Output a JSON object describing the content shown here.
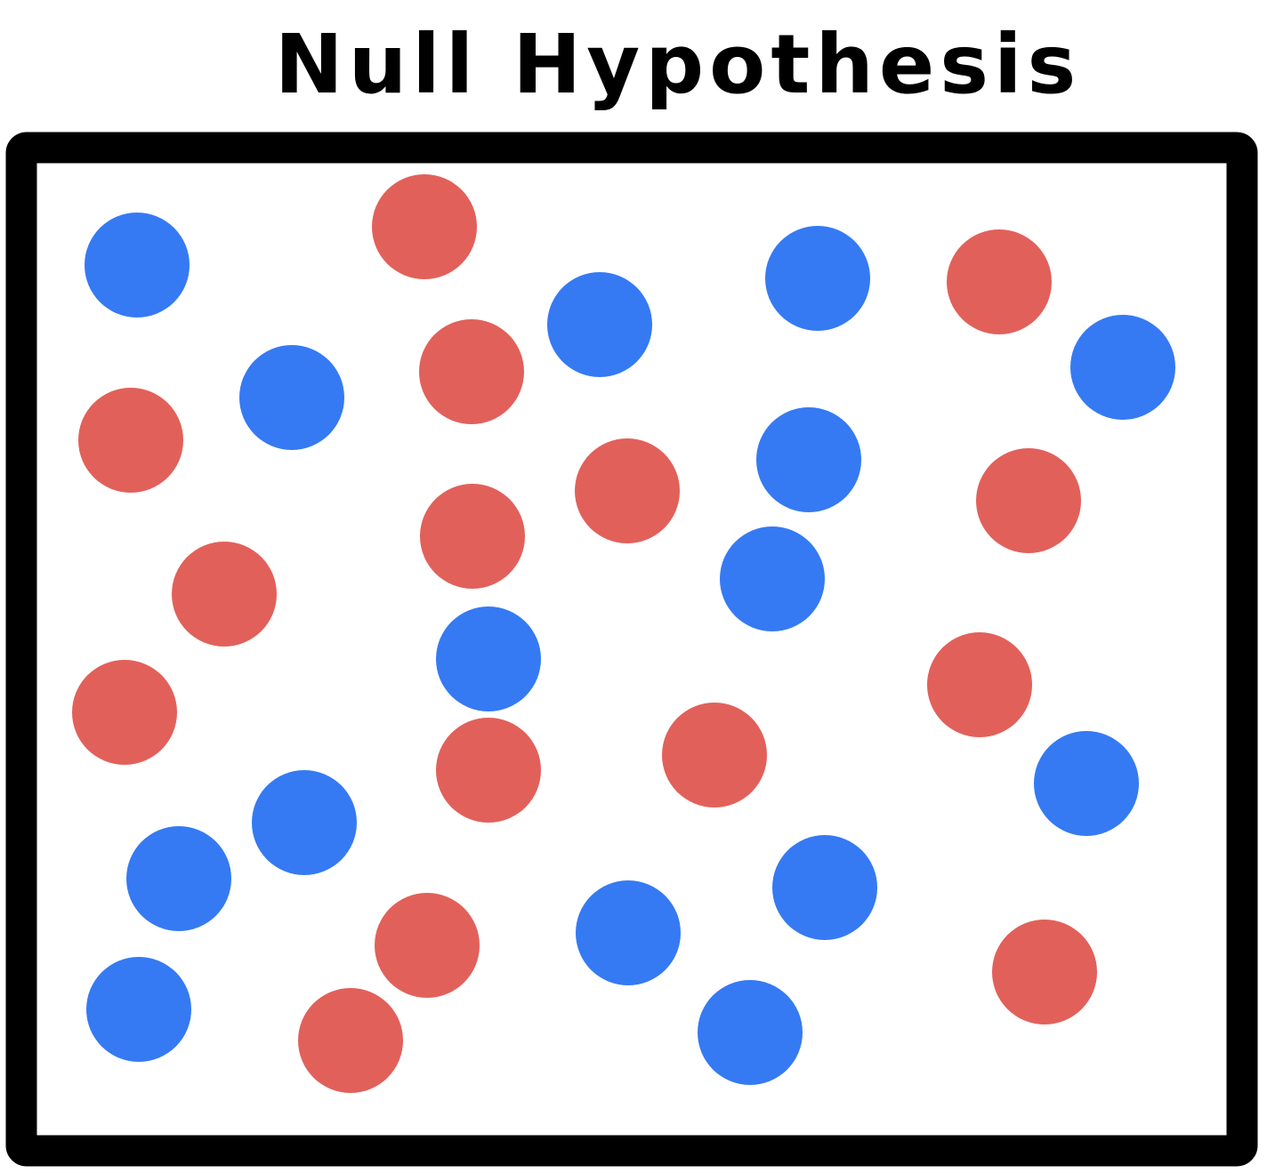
{
  "title": "Null Hypothesis",
  "colors": {
    "red": "#e2605a",
    "blue": "#357af3",
    "frame": "#000000",
    "background": "#ffffff"
  },
  "dots": [
    {
      "color": "blue"
    },
    {
      "color": "red"
    },
    {
      "color": "blue"
    },
    {
      "color": "blue"
    },
    {
      "color": "red"
    },
    {
      "color": "blue"
    },
    {
      "color": "red"
    },
    {
      "color": "blue"
    },
    {
      "color": "red"
    },
    {
      "color": "blue"
    },
    {
      "color": "red"
    },
    {
      "color": "blue"
    },
    {
      "color": "red"
    },
    {
      "color": "red"
    },
    {
      "color": "red"
    },
    {
      "color": "red"
    },
    {
      "color": "blue"
    },
    {
      "color": "blue"
    },
    {
      "color": "red"
    },
    {
      "color": "red"
    },
    {
      "color": "red"
    },
    {
      "color": "blue"
    },
    {
      "color": "blue"
    },
    {
      "color": "blue"
    },
    {
      "color": "blue"
    },
    {
      "color": "red"
    },
    {
      "color": "blue"
    },
    {
      "color": "red"
    },
    {
      "color": "blue"
    },
    {
      "color": "red"
    },
    {
      "color": "red"
    }
  ]
}
